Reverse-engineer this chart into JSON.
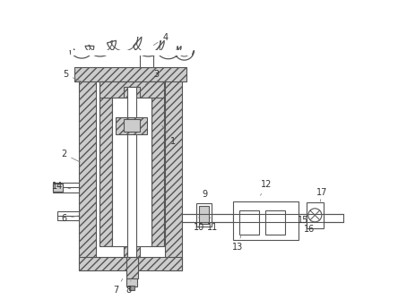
{
  "bg_color": "#ffffff",
  "line_color": "#555555",
  "label_color": "#333333",
  "hatch_fc": "#cccccc",
  "annotations": {
    "1": [
      0.415,
      0.54,
      0.375,
      0.6
    ],
    "2": [
      0.06,
      0.5,
      0.12,
      0.47
    ],
    "3": [
      0.36,
      0.76,
      0.32,
      0.72
    ],
    "4": [
      0.39,
      0.88,
      0.345,
      0.85
    ],
    "5": [
      0.065,
      0.76,
      0.13,
      0.73
    ],
    "6": [
      0.06,
      0.29,
      0.115,
      0.3
    ],
    "7": [
      0.23,
      0.055,
      0.255,
      0.1
    ],
    "8": [
      0.27,
      0.055,
      0.28,
      0.095
    ],
    "9": [
      0.52,
      0.37,
      0.51,
      0.33
    ],
    "10": [
      0.5,
      0.26,
      0.5,
      0.295
    ],
    "11": [
      0.545,
      0.26,
      0.535,
      0.295
    ],
    "12": [
      0.72,
      0.4,
      0.7,
      0.365
    ],
    "13": [
      0.625,
      0.195,
      0.64,
      0.245
    ],
    "14": [
      0.04,
      0.395,
      0.09,
      0.385
    ],
    "15": [
      0.84,
      0.285,
      0.855,
      0.3
    ],
    "16": [
      0.86,
      0.255,
      0.865,
      0.28
    ],
    "17": [
      0.9,
      0.375,
      0.895,
      0.345
    ]
  }
}
